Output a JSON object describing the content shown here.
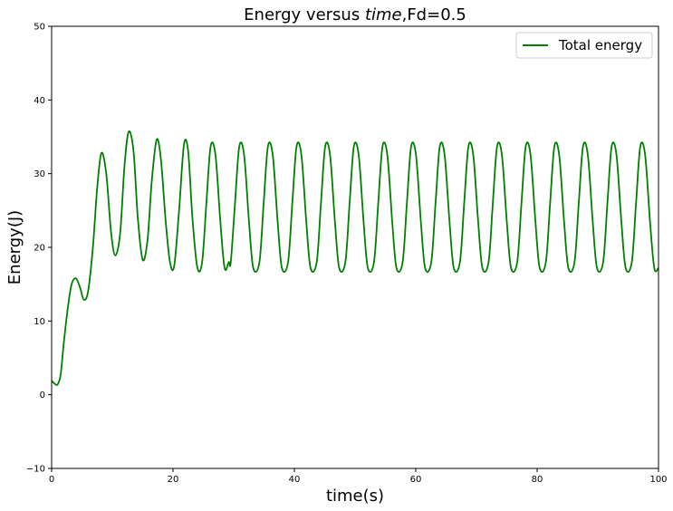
{
  "chart_data": {
    "type": "line",
    "title": {
      "prefix": "Energy versus ",
      "italic": "time",
      "suffix": ",Fd=0.5"
    },
    "xlabel": "time(s)",
    "ylabel": "Energy(J)",
    "xlim": [
      0,
      100
    ],
    "ylim": [
      -10,
      50
    ],
    "xticks": [
      0,
      20,
      40,
      60,
      80,
      100
    ],
    "yticks": [
      -10,
      0,
      10,
      20,
      30,
      40,
      50
    ],
    "xtick_labels": [
      "0",
      "20",
      "40",
      "60",
      "80",
      "100"
    ],
    "ytick_labels": [
      "−10",
      "0",
      "10",
      "20",
      "30",
      "40",
      "50"
    ],
    "grid": false,
    "legend_position": "top-right",
    "series": [
      {
        "name": "Total energy",
        "color": "#008000",
        "x": [
          0,
          0.5,
          1.0,
          1.5,
          2.0,
          2.7,
          3.3,
          4.0,
          4.7,
          5.3,
          6.0,
          6.8,
          7.5,
          8.2,
          9.0,
          9.8,
          10.5,
          11.3,
          12.0,
          12.7,
          13.5,
          14.2,
          15.0,
          15.8,
          16.5,
          17.3,
          18.0,
          18.8,
          19.5,
          20.2,
          21.0,
          21.8,
          22.5,
          23.2,
          24.0,
          24.8,
          25.5,
          26.2,
          27.0,
          27.8,
          28.5,
          29.2
        ],
        "y": [
          1.9,
          1.5,
          1.4,
          2.8,
          7.0,
          12.0,
          15.0,
          15.8,
          14.5,
          12.9,
          14.0,
          20.0,
          28.0,
          32.8,
          30.0,
          22.0,
          18.9,
          22.0,
          31.0,
          35.7,
          33.0,
          24.0,
          18.3,
          21.0,
          29.0,
          34.6,
          32.0,
          23.5,
          18.0,
          17.5,
          25.0,
          33.9,
          33.0,
          24.0,
          17.3,
          18.0,
          26.0,
          33.7,
          32.5,
          23.5,
          17.2,
          18.0
        ]
      }
    ],
    "periodic_extension": {
      "period": 4.72,
      "until": 100
    }
  }
}
